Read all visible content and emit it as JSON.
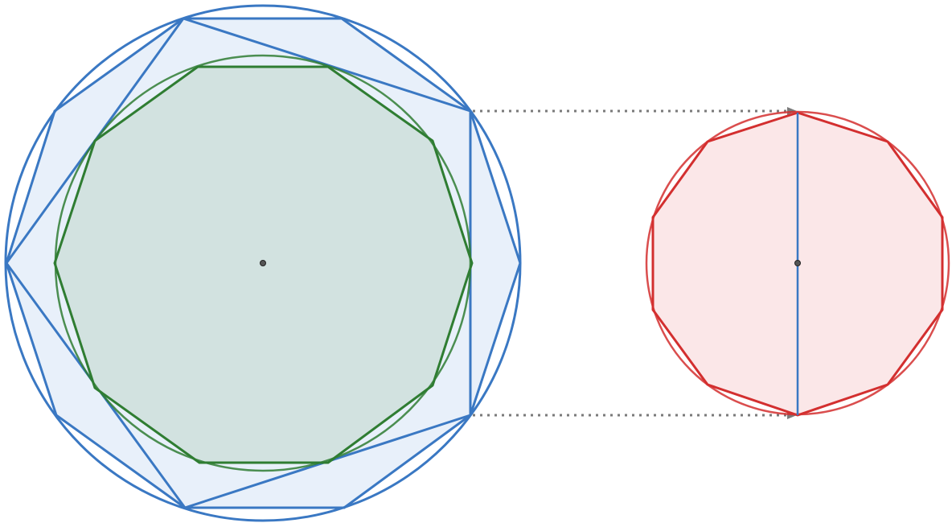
{
  "colors": {
    "blue": "#3a78c3",
    "blue_fill": "#e8f0fa",
    "green": "#2f7d32",
    "green_fill": "#d2e2e0",
    "red": "#d32f2f",
    "red_fill": "#fbe7e8",
    "arrow": "#7a7a7a",
    "center_dot": "#333333"
  },
  "shapes": {
    "large_circle": "circumscribed-circle",
    "star_polygon": "ten-point-polygon",
    "inner_circle": "inscribed-circle",
    "decagon": "regular-decagon",
    "small_circle": "small-circle",
    "small_decagon": "small-regular-decagon",
    "diameter": "vertical-diameter"
  }
}
